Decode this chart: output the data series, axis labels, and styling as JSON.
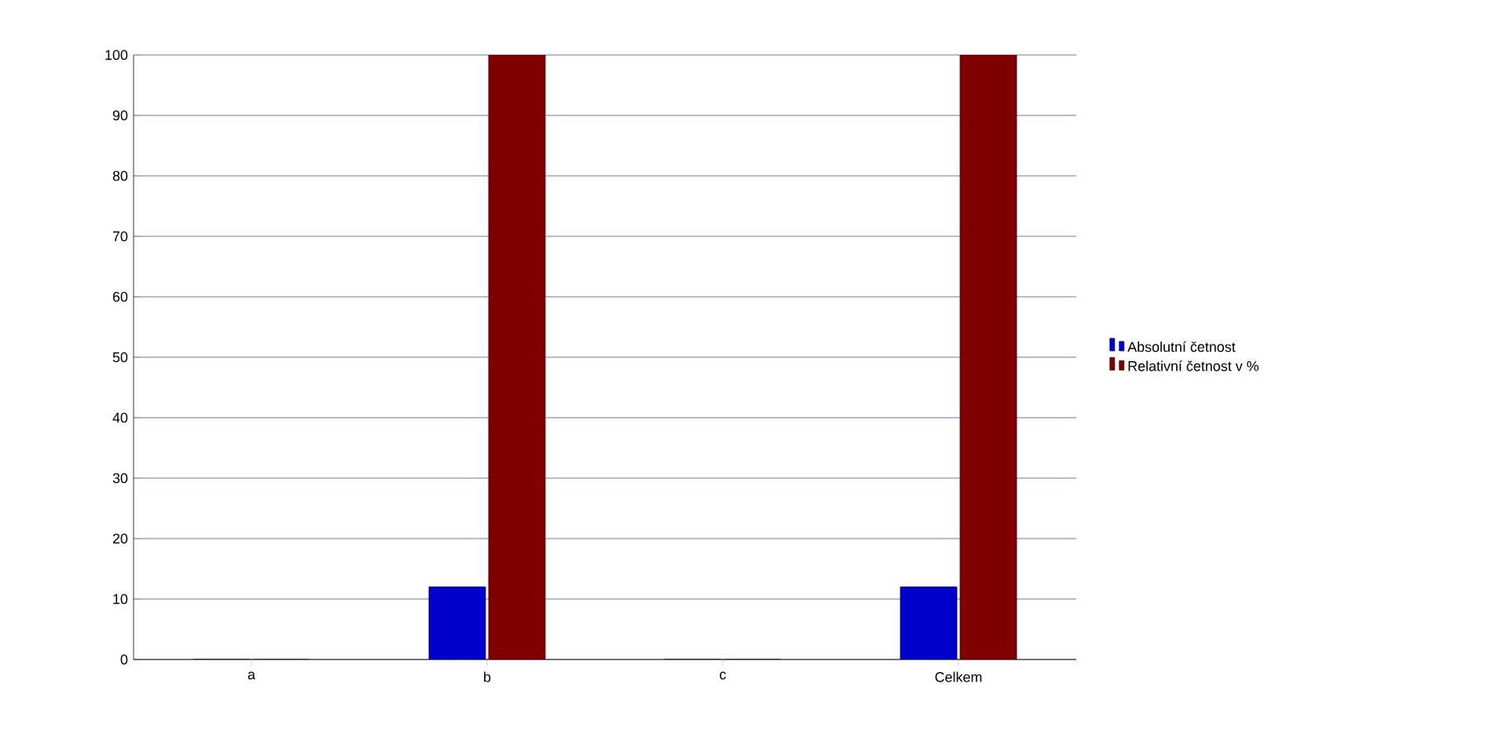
{
  "chart_data": {
    "type": "bar",
    "categories": [
      "a",
      "b",
      "c",
      "Celkem"
    ],
    "series": [
      {
        "name": "Absolutní četnost",
        "color": "#0000cc",
        "values": [
          0,
          12,
          0,
          12
        ]
      },
      {
        "name": "Relativní četnost v %",
        "color": "#800000",
        "values": [
          0,
          100,
          0,
          100
        ]
      }
    ],
    "ylim": [
      0,
      100
    ],
    "yticks": [
      0,
      10,
      20,
      30,
      40,
      50,
      60,
      70,
      80,
      90,
      100
    ],
    "grid": "y",
    "legend": "right"
  }
}
